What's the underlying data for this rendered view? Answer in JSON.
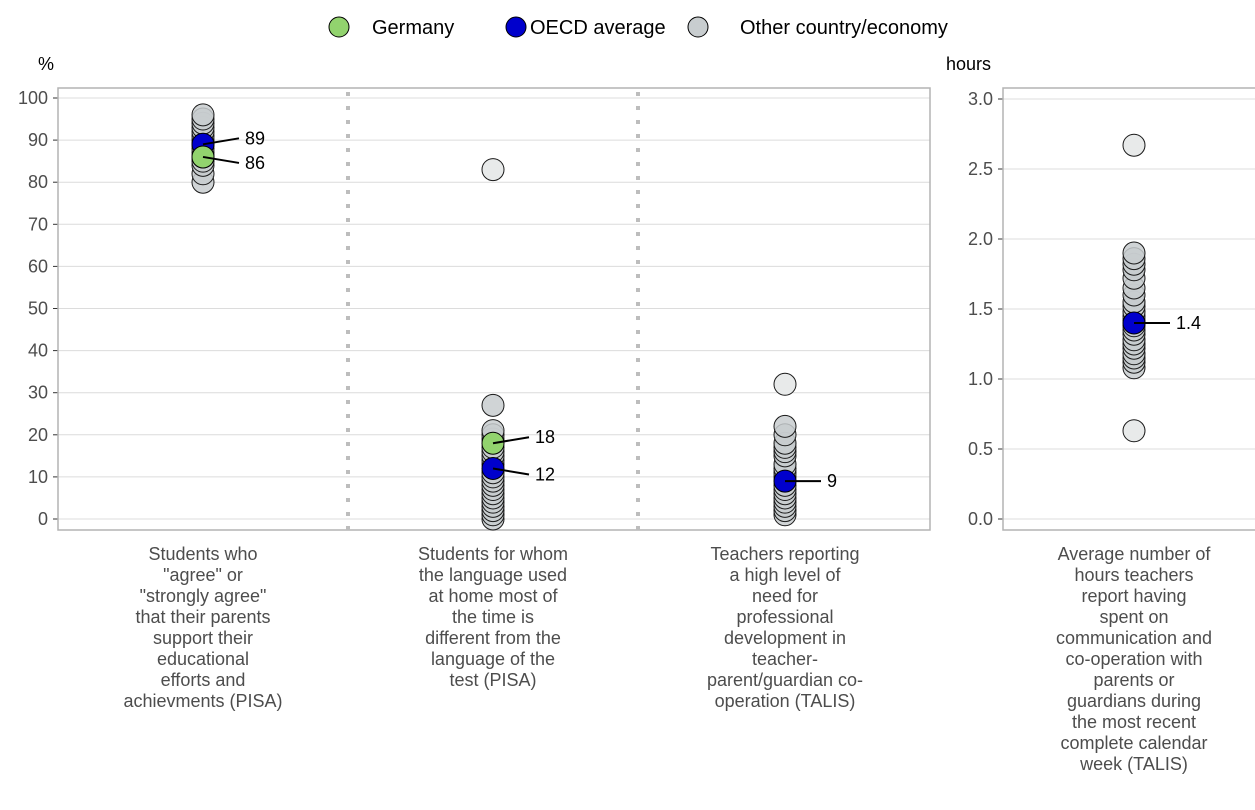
{
  "legend": [
    {
      "label": "Germany",
      "color": "#92d36e"
    },
    {
      "label": "OECD average",
      "color": "#0000cc"
    },
    {
      "label": "Other country/economy",
      "color": "#c8cdcf"
    }
  ],
  "chart_data": [
    {
      "type": "scatter",
      "unit_label": "%",
      "ylim": [
        0,
        100
      ],
      "yticks": [
        0,
        10,
        20,
        30,
        40,
        50,
        60,
        70,
        80,
        90,
        100
      ],
      "grid": true,
      "categories": [
        {
          "label_lines": [
            "Students who",
            "\"agree\" or",
            "\"strongly agree\"",
            "that their parents",
            "support their",
            "educational",
            "efforts and",
            "achievments (PISA)"
          ],
          "others": [
            80,
            82,
            84,
            85,
            86,
            87,
            88,
            89,
            90,
            91,
            92,
            93,
            94,
            95,
            96
          ],
          "germany": 86,
          "oecd": 89,
          "labels": {
            "germany": "86",
            "oecd": "89"
          }
        },
        {
          "label_lines": [
            "Students for whom",
            "the language used",
            "at home most of",
            "the time is",
            "different from the",
            "language of the",
            "test (PISA)"
          ],
          "others": [
            0,
            1,
            2,
            3,
            4,
            5,
            6,
            7,
            8,
            9,
            10,
            11,
            13,
            14,
            15,
            16,
            17,
            19,
            20,
            21,
            27,
            83
          ],
          "germany": 18,
          "oecd": 12,
          "labels": {
            "germany": "18",
            "oecd": "12"
          }
        },
        {
          "label_lines": [
            "Teachers reporting",
            "a high level of",
            "need for",
            "professional",
            "development in",
            "teacher-",
            "parent/guardian co-",
            "operation (TALIS)"
          ],
          "others": [
            1,
            2,
            3,
            4,
            5,
            6,
            7,
            8,
            10,
            11,
            12,
            13,
            15,
            16,
            17,
            18,
            20,
            22,
            32
          ],
          "germany": null,
          "oecd": 9,
          "labels": {
            "oecd": "9"
          }
        }
      ]
    },
    {
      "type": "scatter",
      "unit_label": "hours",
      "ylim": [
        0,
        3
      ],
      "yticks": [
        "0.0",
        "0.5",
        "1.0",
        "1.5",
        "2.0",
        "2.5",
        "3.0"
      ],
      "grid": true,
      "categories": [
        {
          "label_lines": [
            "Average number of",
            "hours teachers",
            "report having",
            "spent on",
            "communication and",
            "co-operation with",
            "parents or",
            "guardians during",
            "the most recent",
            "complete calendar",
            "week (TALIS)"
          ],
          "others": [
            0.63,
            1.08,
            1.12,
            1.15,
            1.18,
            1.22,
            1.25,
            1.28,
            1.32,
            1.35,
            1.38,
            1.42,
            1.45,
            1.48,
            1.52,
            1.55,
            1.6,
            1.65,
            1.72,
            1.78,
            1.82,
            1.86,
            1.9,
            2.67
          ],
          "germany": null,
          "oecd": 1.4,
          "labels": {
            "oecd": "1.4"
          }
        }
      ]
    }
  ]
}
